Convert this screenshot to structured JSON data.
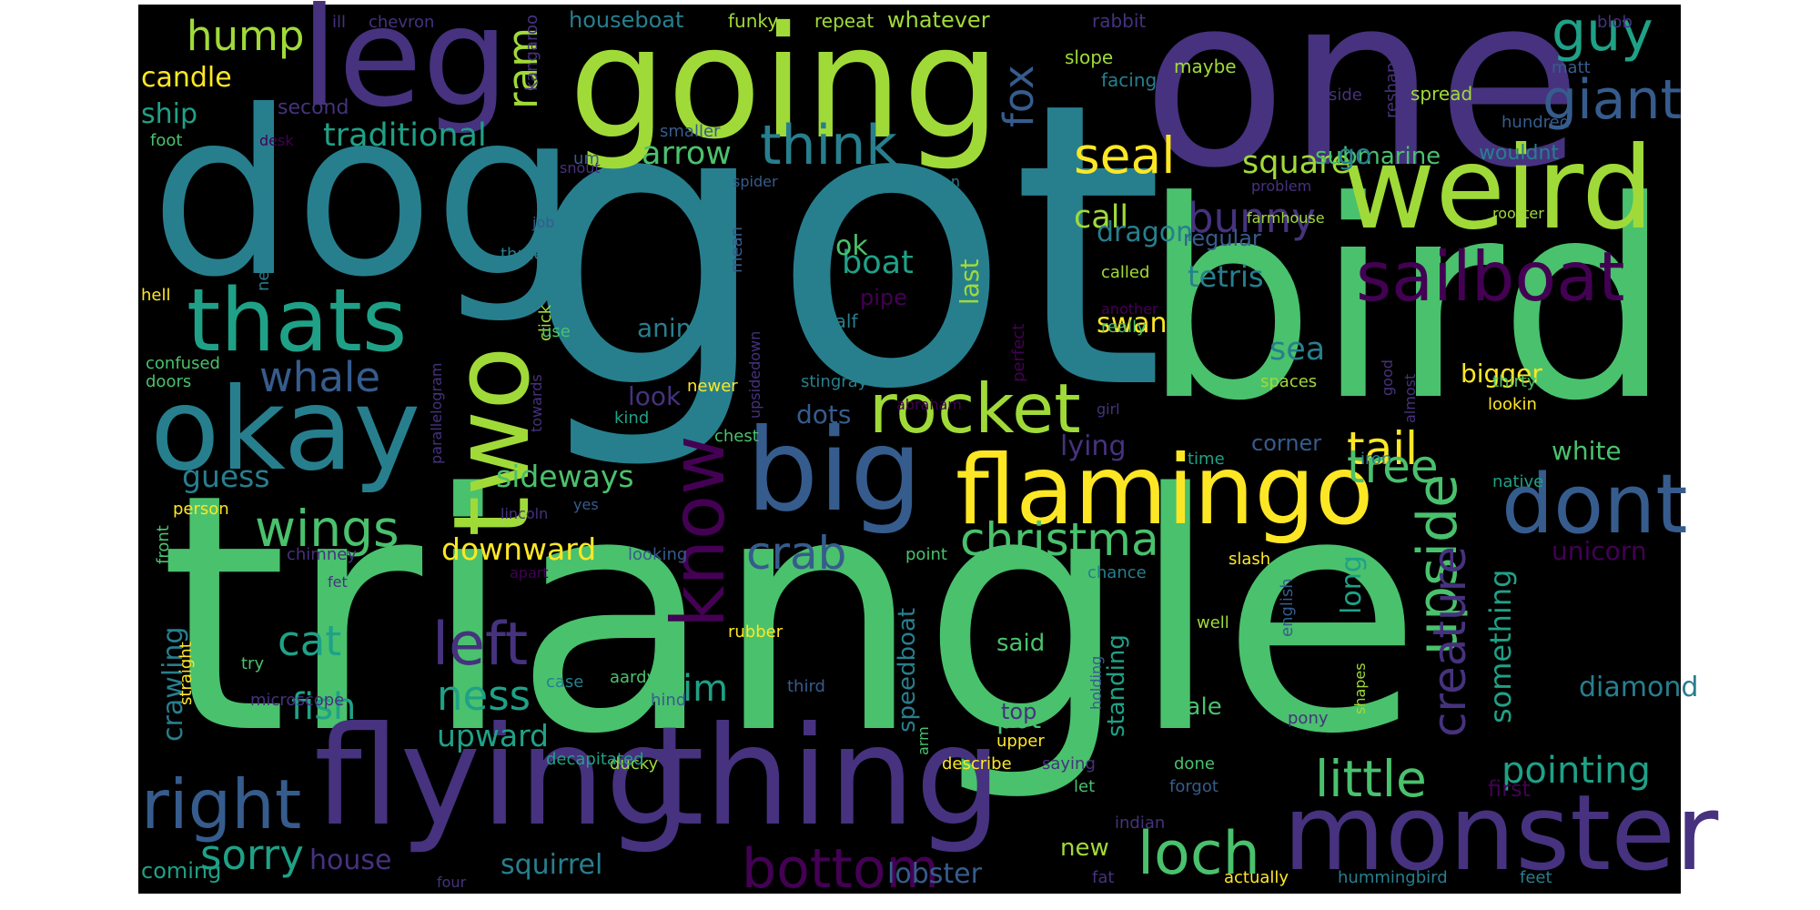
{
  "background": "#000000",
  "palette": {
    "dark_purple": "#440154",
    "purple": "#46327e",
    "indigo": "#365c8d",
    "blue": "#277f8e",
    "teal": "#1fa187",
    "green": "#4ac16d",
    "lime": "#a0da39",
    "yellow": "#fde725"
  },
  "words": [
    {
      "text": "triangle",
      "color": "green"
    },
    {
      "text": "got",
      "color": "blue"
    },
    {
      "text": "bird",
      "color": "green"
    },
    {
      "text": "one",
      "color": "purple"
    },
    {
      "text": "dog",
      "color": "blue"
    },
    {
      "text": "going",
      "color": "lime"
    },
    {
      "text": "flying",
      "color": "purple"
    },
    {
      "text": "thing",
      "color": "purple"
    },
    {
      "text": "monster",
      "color": "purple"
    },
    {
      "text": "weird",
      "color": "lime"
    },
    {
      "text": "okay",
      "color": "blue"
    },
    {
      "text": "leg",
      "color": "purple"
    },
    {
      "text": "big",
      "color": "indigo"
    },
    {
      "text": "flamingo",
      "color": "yellow"
    },
    {
      "text": "two",
      "color": "lime"
    },
    {
      "text": "sailboat",
      "color": "dark_purple"
    },
    {
      "text": "thats",
      "color": "teal"
    },
    {
      "text": "dont",
      "color": "indigo"
    },
    {
      "text": "know",
      "color": "dark_purple"
    },
    {
      "text": "rocket",
      "color": "lime"
    },
    {
      "text": "right",
      "color": "indigo"
    },
    {
      "text": "bottom",
      "color": "dark_purple"
    },
    {
      "text": "loch",
      "color": "green"
    },
    {
      "text": "think",
      "color": "blue"
    },
    {
      "text": "christmas",
      "color": "green"
    },
    {
      "text": "wings",
      "color": "green"
    },
    {
      "text": "left",
      "color": "purple"
    },
    {
      "text": "little",
      "color": "green"
    },
    {
      "text": "upside",
      "color": "green"
    },
    {
      "text": "seal",
      "color": "yellow"
    },
    {
      "text": "guy",
      "color": "teal"
    },
    {
      "text": "giant",
      "color": "indigo"
    },
    {
      "text": "tail",
      "color": "yellow"
    },
    {
      "text": "tree",
      "color": "green"
    },
    {
      "text": "creature",
      "color": "purple"
    },
    {
      "text": "crab",
      "color": "indigo"
    },
    {
      "text": "whale",
      "color": "indigo"
    },
    {
      "text": "sorry",
      "color": "teal"
    },
    {
      "text": "ness",
      "color": "teal"
    },
    {
      "text": "cat",
      "color": "teal"
    },
    {
      "text": "hump",
      "color": "lime"
    },
    {
      "text": "ram",
      "color": "lime"
    },
    {
      "text": "bunny",
      "color": "purple"
    },
    {
      "text": "fox",
      "color": "indigo"
    },
    {
      "text": "im",
      "color": "teal"
    },
    {
      "text": "pointing",
      "color": "teal"
    },
    {
      "text": "fish",
      "color": "teal"
    },
    {
      "text": "arrow",
      "color": "green"
    },
    {
      "text": "traditional",
      "color": "teal"
    },
    {
      "text": "square",
      "color": "lime"
    },
    {
      "text": "call",
      "color": "lime"
    },
    {
      "text": "boat",
      "color": "teal"
    },
    {
      "text": "downward",
      "color": "yellow"
    },
    {
      "text": "sideways",
      "color": "green"
    },
    {
      "text": "upward",
      "color": "teal"
    },
    {
      "text": "squirrel",
      "color": "blue"
    },
    {
      "text": "lobster",
      "color": "indigo"
    },
    {
      "text": "house",
      "color": "purple"
    },
    {
      "text": "something",
      "color": "teal"
    },
    {
      "text": "long",
      "color": "teal"
    },
    {
      "text": "sea",
      "color": "blue"
    },
    {
      "text": "tetris",
      "color": "blue"
    },
    {
      "text": "guess",
      "color": "blue"
    },
    {
      "text": "ok",
      "color": "green"
    },
    {
      "text": "dragon",
      "color": "blue"
    },
    {
      "text": "submarine",
      "color": "green"
    },
    {
      "text": "candle",
      "color": "yellow"
    },
    {
      "text": "ship",
      "color": "teal"
    },
    {
      "text": "crawling",
      "color": "blue"
    },
    {
      "text": "diamond",
      "color": "blue"
    },
    {
      "text": "lying",
      "color": "purple"
    },
    {
      "text": "unicorn",
      "color": "dark_purple"
    },
    {
      "text": "bigger",
      "color": "yellow"
    },
    {
      "text": "white",
      "color": "green"
    },
    {
      "text": "swan",
      "color": "yellow"
    },
    {
      "text": "pot",
      "color": "green"
    },
    {
      "text": "look",
      "color": "purple"
    },
    {
      "text": "animal",
      "color": "blue"
    },
    {
      "text": "dots",
      "color": "indigo"
    },
    {
      "text": "speedboat",
      "color": "blue"
    },
    {
      "text": "regular",
      "color": "indigo"
    },
    {
      "text": "corner",
      "color": "indigo"
    },
    {
      "text": "standing",
      "color": "teal"
    },
    {
      "text": "said",
      "color": "green"
    },
    {
      "text": "last",
      "color": "lime"
    },
    {
      "text": "sale",
      "color": "green"
    },
    {
      "text": "first",
      "color": "dark_purple"
    },
    {
      "text": "sails",
      "color": "blue"
    },
    {
      "text": "coming",
      "color": "teal"
    },
    {
      "text": "new",
      "color": "lime"
    },
    {
      "text": "houseboat",
      "color": "blue"
    },
    {
      "text": "whatever",
      "color": "lime"
    },
    {
      "text": "wouldnt",
      "color": "blue"
    },
    {
      "text": "pipe",
      "color": "dark_purple"
    },
    {
      "text": "go",
      "color": "blue"
    },
    {
      "text": "top",
      "color": "purple"
    },
    {
      "text": "second",
      "color": "purple"
    },
    {
      "text": "half",
      "color": "blue"
    },
    {
      "text": "funky",
      "color": "lime"
    },
    {
      "text": "repeat",
      "color": "lime"
    },
    {
      "text": "rabbit",
      "color": "purple"
    },
    {
      "text": "chevron",
      "color": "purple"
    },
    {
      "text": "ill",
      "color": "purple"
    },
    {
      "text": "kangaroo",
      "color": "purple"
    },
    {
      "text": "slope",
      "color": "lime"
    },
    {
      "text": "facing",
      "color": "blue"
    },
    {
      "text": "maybe",
      "color": "lime"
    },
    {
      "text": "matt",
      "color": "indigo"
    },
    {
      "text": "blob",
      "color": "purple"
    },
    {
      "text": "spread",
      "color": "lime"
    },
    {
      "text": "side",
      "color": "purple"
    },
    {
      "text": "reshape",
      "color": "purple"
    },
    {
      "text": "hundred",
      "color": "indigo"
    },
    {
      "text": "um",
      "color": "indigo"
    },
    {
      "text": "smaller",
      "color": "indigo"
    },
    {
      "text": "foot",
      "color": "green"
    },
    {
      "text": "desk",
      "color": "dark_purple"
    },
    {
      "text": "snout",
      "color": "purple"
    },
    {
      "text": "spider",
      "color": "indigo"
    },
    {
      "text": "american",
      "color": "blue"
    },
    {
      "text": "problem",
      "color": "purple"
    },
    {
      "text": "rooster",
      "color": "lime"
    },
    {
      "text": "farmhouse",
      "color": "lime"
    },
    {
      "text": "called",
      "color": "lime"
    },
    {
      "text": "another",
      "color": "dark_purple"
    },
    {
      "text": "really",
      "color": "green"
    },
    {
      "text": "perfect",
      "color": "dark_purple"
    },
    {
      "text": "mean",
      "color": "indigo"
    },
    {
      "text": "three",
      "color": "blue"
    },
    {
      "text": "job",
      "color": "indigo"
    },
    {
      "text": "necessarily",
      "color": "blue"
    },
    {
      "text": "click",
      "color": "lime"
    },
    {
      "text": "use",
      "color": "green"
    },
    {
      "text": "upsidedown",
      "color": "purple"
    },
    {
      "text": "hell",
      "color": "yellow"
    },
    {
      "text": "confused",
      "color": "green"
    },
    {
      "text": "doors",
      "color": "green"
    },
    {
      "text": "parallelogram",
      "color": "purple"
    },
    {
      "text": "towards",
      "color": "purple"
    },
    {
      "text": "stingray",
      "color": "blue"
    },
    {
      "text": "newer",
      "color": "yellow"
    },
    {
      "text": "kind",
      "color": "teal"
    },
    {
      "text": "chest",
      "color": "green"
    },
    {
      "text": "abraham",
      "color": "dark_purple"
    },
    {
      "text": "girl",
      "color": "purple"
    },
    {
      "text": "almost",
      "color": "purple"
    },
    {
      "text": "spaces",
      "color": "lime"
    },
    {
      "text": "good",
      "color": "purple"
    },
    {
      "text": "thirty",
      "color": "green"
    },
    {
      "text": "lookin",
      "color": "yellow"
    },
    {
      "text": "time",
      "color": "teal"
    },
    {
      "text": "person",
      "color": "yellow"
    },
    {
      "text": "lincoln",
      "color": "purple"
    },
    {
      "text": "yes",
      "color": "indigo"
    },
    {
      "text": "iron",
      "color": "blue"
    },
    {
      "text": "native",
      "color": "teal"
    },
    {
      "text": "front",
      "color": "green"
    },
    {
      "text": "chimney",
      "color": "purple"
    },
    {
      "text": "looking",
      "color": "indigo"
    },
    {
      "text": "point",
      "color": "green"
    },
    {
      "text": "slash",
      "color": "yellow"
    },
    {
      "text": "fet",
      "color": "purple"
    },
    {
      "text": "apart",
      "color": "dark_purple"
    },
    {
      "text": "chance",
      "color": "blue"
    },
    {
      "text": "well",
      "color": "lime"
    },
    {
      "text": "english",
      "color": "indigo"
    },
    {
      "text": "rubber",
      "color": "yellow"
    },
    {
      "text": "aardvark",
      "color": "green"
    },
    {
      "text": "case",
      "color": "blue"
    },
    {
      "text": "try",
      "color": "green"
    },
    {
      "text": "straight",
      "color": "yellow"
    },
    {
      "text": "microscope",
      "color": "purple"
    },
    {
      "text": "hind",
      "color": "indigo"
    },
    {
      "text": "third",
      "color": "indigo"
    },
    {
      "text": "arm",
      "color": "green"
    },
    {
      "text": "holding",
      "color": "indigo"
    },
    {
      "text": "shapes",
      "color": "lime"
    },
    {
      "text": "pony",
      "color": "purple"
    },
    {
      "text": "ducky",
      "color": "lime"
    },
    {
      "text": "decapitated",
      "color": "teal"
    },
    {
      "text": "upper",
      "color": "yellow"
    },
    {
      "text": "describe",
      "color": "yellow"
    },
    {
      "text": "saying",
      "color": "purple"
    },
    {
      "text": "done",
      "color": "green"
    },
    {
      "text": "forgot",
      "color": "indigo"
    },
    {
      "text": "let",
      "color": "green"
    },
    {
      "text": "indian",
      "color": "purple"
    },
    {
      "text": "fat",
      "color": "purple"
    },
    {
      "text": "four",
      "color": "purple"
    },
    {
      "text": "actually",
      "color": "yellow"
    },
    {
      "text": "hummingbird",
      "color": "blue"
    },
    {
      "text": "feet",
      "color": "blue"
    }
  ]
}
